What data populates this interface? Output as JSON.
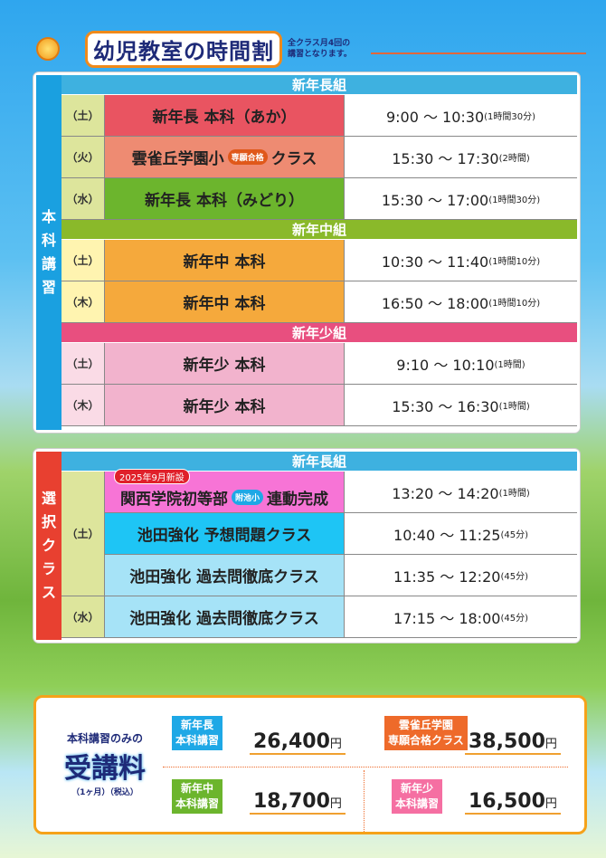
{
  "header": {
    "title": "幼児教室の時間割",
    "note_line1": "全クラス月4回の",
    "note_line2": "講習となります。"
  },
  "regular": {
    "side_label": [
      "本",
      "科",
      "講",
      "習"
    ],
    "groups": [
      {
        "name": "新年長組",
        "color": "#3eb1e0",
        "rows": [
          {
            "day": "（土）",
            "class": "新年長 本科（あか）",
            "time": "9:00 ～ 10:30",
            "duration": "(1時間30分)",
            "color": "#e95461",
            "day_color": "#dde59c"
          },
          {
            "day": "（火）",
            "class": "雲雀丘学園小",
            "badge": "専願合格",
            "class_suffix": "クラス",
            "time": "15:30 ～ 17:30",
            "duration": "(2時間)",
            "color": "#ee8b72",
            "day_color": "#dde59c"
          },
          {
            "day": "（水）",
            "class": "新年長 本科（みどり）",
            "time": "15:30 ～ 17:00",
            "duration": "(1時間30分)",
            "color": "#6cb52d",
            "day_color": "#dde59c"
          }
        ]
      },
      {
        "name": "新年中組",
        "color": "#8ab92a",
        "rows": [
          {
            "day": "（土）",
            "class": "新年中 本科",
            "time": "10:30 ～ 11:40",
            "duration": "(1時間10分)",
            "color": "#f5a93c",
            "day_color": "#fff4b0"
          },
          {
            "day": "（木）",
            "class": "新年中 本科",
            "time": "16:50 ～ 18:00",
            "duration": "(1時間10分)",
            "color": "#f5a93c",
            "day_color": "#fff4b0"
          }
        ]
      },
      {
        "name": "新年少組",
        "color": "#e84f7f",
        "rows": [
          {
            "day": "（土）",
            "class": "新年少 本科",
            "time": "9:10 ～ 10:10",
            "duration": "(1時間)",
            "color": "#f2b3cd",
            "day_color": "#fadbe6"
          },
          {
            "day": "（木）",
            "class": "新年少 本科",
            "time": "15:30 ～ 16:30",
            "duration": "(1時間)",
            "color": "#f2b3cd",
            "day_color": "#fadbe6"
          }
        ]
      }
    ]
  },
  "elective": {
    "side_label": [
      "選",
      "択",
      "ク",
      "ラ",
      "ス"
    ],
    "group": "新年長組",
    "rows": [
      {
        "day": "（土）",
        "new_tag": "2025年9月新設",
        "class": "関西学院初等部",
        "badge": "附池小",
        "class_suffix": "連動完成",
        "time": "13:20 ～ 14:20",
        "duration": "(1時間)",
        "color": "#f774d6"
      },
      {
        "class": "池田強化 予想問題クラス",
        "time": "10:40 ～ 11:25",
        "duration": "(45分)",
        "color": "#1ec5f5"
      },
      {
        "class": "池田強化 過去問徹底クラス",
        "time": "11:35 ～ 12:20",
        "duration": "(45分)",
        "color": "#a6e3f7"
      },
      {
        "day": "（水）",
        "class": "池田強化 過去問徹底クラス",
        "time": "17:15 ～ 18:00",
        "duration": "(45分)",
        "color": "#a6e3f7"
      }
    ]
  },
  "fees": {
    "heading": "本科講習のみの",
    "title": "受講料",
    "note": "（1ヶ月）（税込）",
    "unit": "円",
    "items": [
      {
        "label1": "新年長",
        "label2": "本科講習",
        "price": "26,400",
        "color": "#1ea8e6"
      },
      {
        "label1": "雲雀丘学園",
        "label2": "専願合格クラス",
        "price": "38,500",
        "color": "#ee6a2a"
      },
      {
        "label1": "新年中",
        "label2": "本科講習",
        "price": "18,700",
        "color": "#6cb52d"
      },
      {
        "label1": "新年少",
        "label2": "本科講習",
        "price": "16,500",
        "color": "#f56fa2"
      }
    ]
  }
}
